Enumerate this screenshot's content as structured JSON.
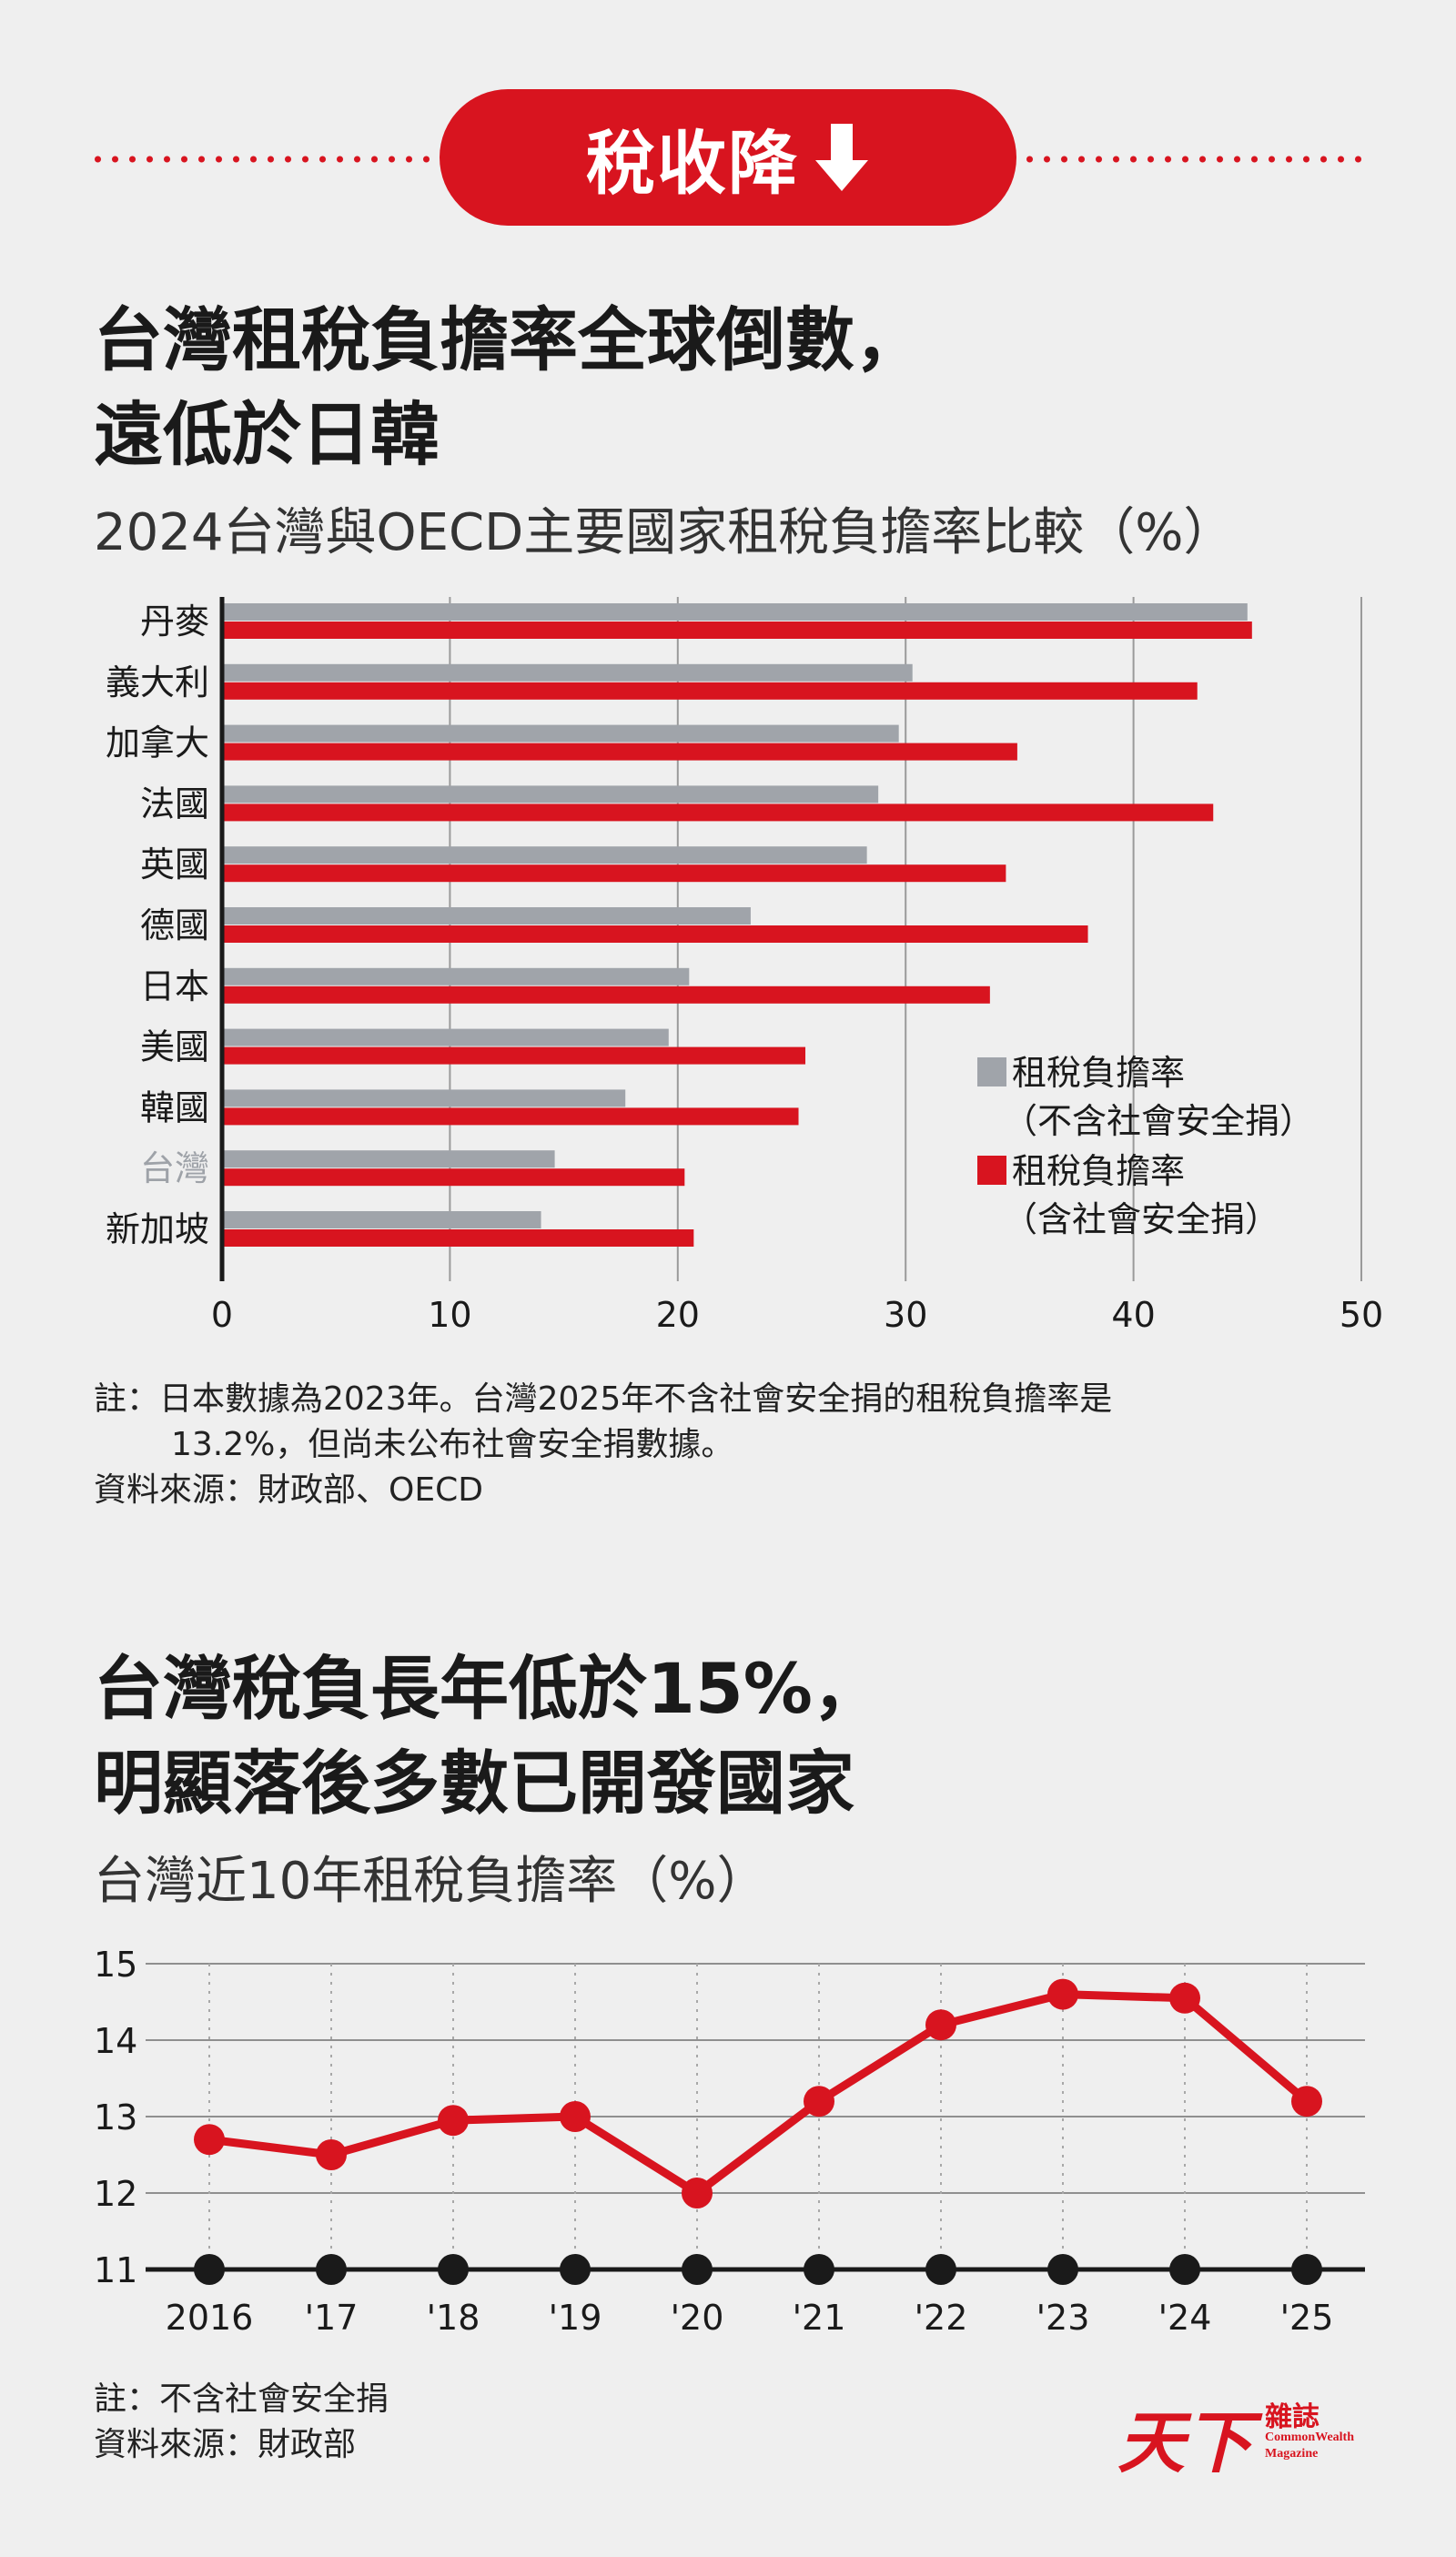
{
  "banner": {
    "text": "稅收降",
    "icon": "down-arrow-icon",
    "color": "#d8141f"
  },
  "section1": {
    "title_line1": "台灣租稅負擔率全球倒數，",
    "title_line2": "遠低於日韓",
    "subtitle": "2024台灣與OECD主要國家租稅負擔率比較（%）",
    "note_line1": "註：日本數據為2023年。台灣2025年不含社會安全捐的租稅負擔率是",
    "note_line2": "13.2%，但尚未公布社會安全捐數據。",
    "source": "資料來源：財政部、OECD"
  },
  "section2": {
    "title_line1": "台灣稅負長年低於15%，",
    "title_line2": "明顯落後多數已開發國家",
    "subtitle": "台灣近10年租稅負擔率（%）",
    "note": "註：不含社會安全捐",
    "source": "資料來源：財政部"
  },
  "logo": {
    "chinese_big": "天下",
    "chinese_small": "雜誌",
    "english_line1": "CommonWealth",
    "english_line2": "Magazine"
  },
  "chart_data": [
    {
      "type": "bar",
      "orientation": "horizontal",
      "categories": [
        "丹麥",
        "義大利",
        "加拿大",
        "法國",
        "英國",
        "德國",
        "日本",
        "美國",
        "韓國",
        "台灣",
        "新加坡"
      ],
      "highlight_category": "台灣",
      "series": [
        {
          "name_line1": "租稅負擔率",
          "name_line2": "（不含社會安全捐）",
          "color": "#a0a4aa",
          "values": [
            45.0,
            30.3,
            29.7,
            28.8,
            28.3,
            23.2,
            20.5,
            19.6,
            17.7,
            14.6,
            14.0
          ]
        },
        {
          "name_line1": "租稅負擔率",
          "name_line2": "（含社會安全捐）",
          "color": "#d8141f",
          "values": [
            45.2,
            42.8,
            34.9,
            43.5,
            34.4,
            38.0,
            33.7,
            25.6,
            25.3,
            20.3,
            20.7
          ]
        }
      ],
      "xlim": [
        0,
        50
      ],
      "xticks": [
        0,
        10,
        20,
        30,
        40,
        50
      ],
      "grid": "vertical",
      "legend_position": "bottom-right"
    },
    {
      "type": "line",
      "x": [
        "2016",
        "'17",
        "'18",
        "'19",
        "'20",
        "'21",
        "'22",
        "'23",
        "'24",
        "'25"
      ],
      "series": [
        {
          "color": "#d8141f",
          "values": [
            12.7,
            12.5,
            12.95,
            13.0,
            12.0,
            13.2,
            14.2,
            14.6,
            14.55,
            13.2
          ]
        }
      ],
      "ylim": [
        11,
        15
      ],
      "yticks": [
        15,
        14,
        13,
        12,
        11
      ],
      "grid": "horizontal"
    }
  ]
}
